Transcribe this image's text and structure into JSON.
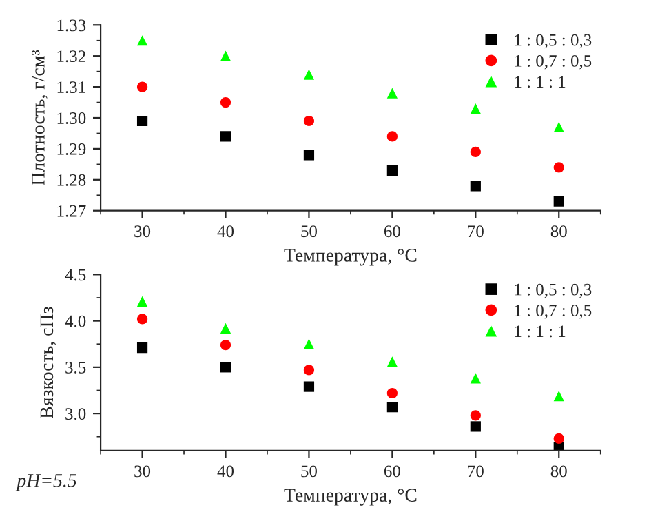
{
  "chart_data": [
    {
      "type": "scatter",
      "ylabel": "Плотность, г/см³",
      "xlabel": "Температура, °C",
      "x": [
        30,
        40,
        50,
        60,
        70,
        80
      ],
      "series": [
        {
          "name": "1 : 0,5 : 0,3",
          "color": "#000000",
          "marker": "square",
          "values": [
            1.299,
            1.294,
            1.288,
            1.283,
            1.278,
            1.273
          ]
        },
        {
          "name": "1 : 0,7 : 0,5",
          "color": "#ff0000",
          "marker": "circle",
          "values": [
            1.31,
            1.305,
            1.299,
            1.294,
            1.289,
            1.284
          ]
        },
        {
          "name": "1 : 1 : 1",
          "color": "#00ff00",
          "marker": "triangle",
          "values": [
            1.325,
            1.32,
            1.314,
            1.308,
            1.303,
            1.297
          ]
        }
      ],
      "xlim": [
        25,
        85
      ],
      "xticks": [
        30,
        40,
        50,
        60,
        70,
        80
      ],
      "ylim": [
        1.27,
        1.33
      ],
      "yticks": [
        1.27,
        1.28,
        1.29,
        {
          "value": 1.3,
          "label": "1.30"
        },
        1.31,
        1.32,
        1.33
      ],
      "legend": "top right",
      "grid": false
    },
    {
      "type": "scatter",
      "ylabel": "Вязкость, сПз",
      "xlabel": "Температура, °C",
      "x": [
        30,
        40,
        50,
        60,
        70,
        80
      ],
      "series": [
        {
          "name": "1 : 0,5 : 0,3",
          "color": "#000000",
          "marker": "square",
          "values": [
            3.71,
            3.5,
            3.29,
            3.07,
            2.86,
            2.64
          ]
        },
        {
          "name": "1 : 0,7 : 0,5",
          "color": "#ff0000",
          "marker": "circle",
          "values": [
            4.02,
            3.74,
            3.47,
            3.22,
            2.98,
            2.73
          ]
        },
        {
          "name": "1 : 1 : 1",
          "color": "#00ff00",
          "marker": "triangle",
          "values": [
            4.21,
            3.92,
            3.75,
            3.56,
            3.38,
            3.19
          ]
        }
      ],
      "xlim": [
        25,
        85
      ],
      "xticks": [
        30,
        40,
        50,
        60,
        70,
        80
      ],
      "ylim": [
        2.6,
        4.5
      ],
      "yticks": [
        {
          "value": 3.0,
          "label": "3.0"
        },
        {
          "value": 3.5,
          "label": "3.5"
        },
        {
          "value": 4.0,
          "label": "4.0"
        },
        {
          "value": 4.5,
          "label": "4.5"
        }
      ],
      "legend": "top right",
      "grid": false,
      "annotations": [
        "pH=5.5"
      ]
    }
  ]
}
